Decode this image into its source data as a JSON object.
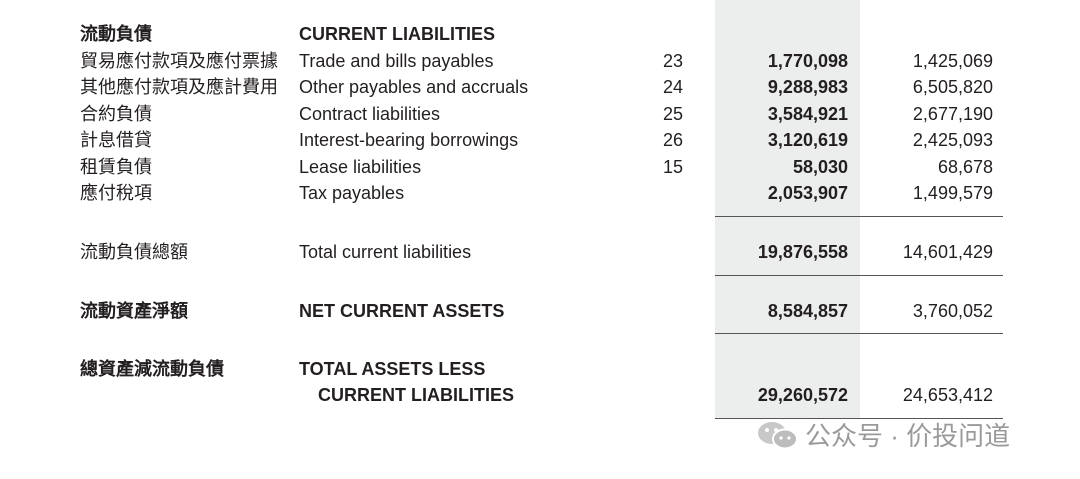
{
  "section": {
    "zh": "流動負債",
    "en": "CURRENT LIABILITIES"
  },
  "rows": [
    {
      "zh": "貿易應付款項及應付票據",
      "en": "Trade and bills payables",
      "note": "23",
      "current": "1,770,098",
      "prior": "1,425,069"
    },
    {
      "zh": "其他應付款項及應計費用",
      "en": "Other payables and accruals",
      "note": "24",
      "current": "9,288,983",
      "prior": "6,505,820"
    },
    {
      "zh": "合約負債",
      "en": "Contract liabilities",
      "note": "25",
      "current": "3,584,921",
      "prior": "2,677,190"
    },
    {
      "zh": "計息借貸",
      "en": "Interest-bearing borrowings",
      "note": "26",
      "current": "3,120,619",
      "prior": "2,425,093"
    },
    {
      "zh": "租賃負債",
      "en": "Lease liabilities",
      "note": "15",
      "current": "58,030",
      "prior": "68,678"
    },
    {
      "zh": "應付稅項",
      "en": "Tax payables",
      "current": "2,053,907",
      "prior": "1,499,579"
    }
  ],
  "total_current": {
    "zh": "流動負債總額",
    "en": "Total current liabilities",
    "current": "19,876,558",
    "prior": "14,601,429"
  },
  "net_current": {
    "zh": "流動資產淨額",
    "en": "NET CURRENT ASSETS",
    "current": "8,584,857",
    "prior": "3,760,052"
  },
  "total_assets": {
    "zh": "總資產減流動負債",
    "en_line1": "TOTAL ASSETS LESS",
    "en_line2": "CURRENT LIABILITIES",
    "current": "29,260,572",
    "prior": "24,653,412"
  },
  "watermark": "公众号 · 价投问道"
}
